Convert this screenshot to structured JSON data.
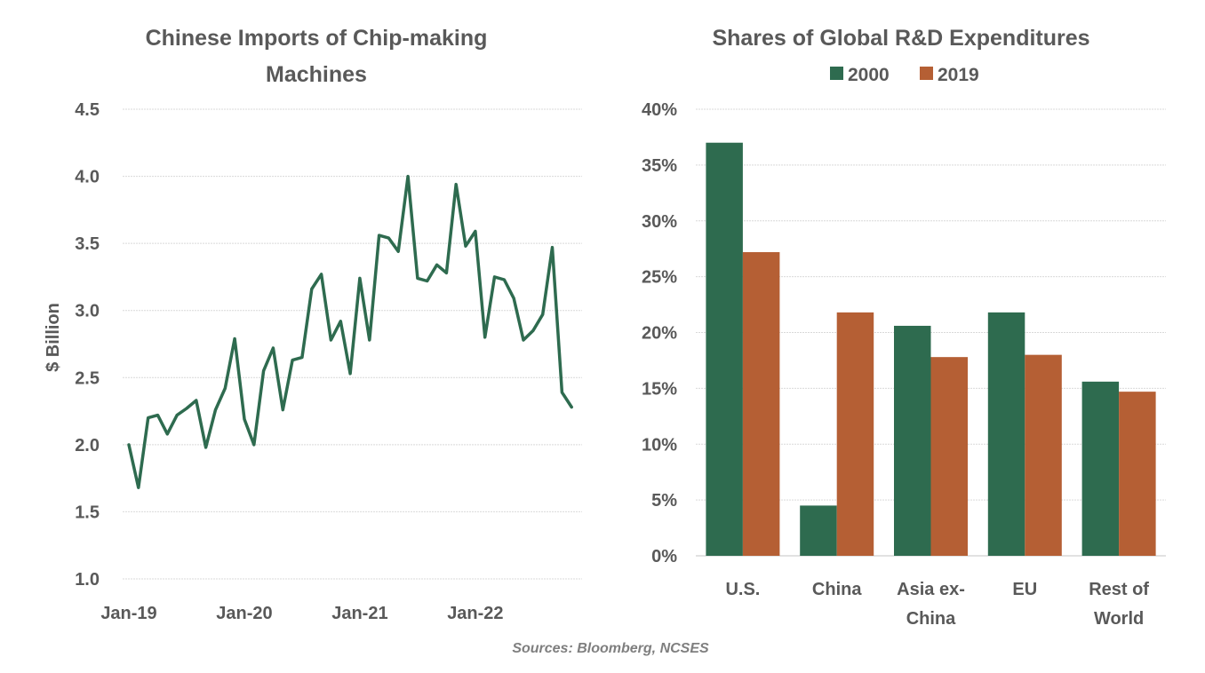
{
  "source_note": "Sources: Bloomberg, NCSES",
  "colors": {
    "line": "#2e6b4f",
    "series_2000": "#2e6b4f",
    "series_2019": "#b55f34",
    "text": "#595959",
    "grid": "#d9d9d9"
  },
  "chart_data": [
    {
      "type": "line",
      "title_lines": [
        "Chinese Imports of Chip-making",
        "Machines"
      ],
      "xlabel": "",
      "ylabel": "$ Billion",
      "ylim": [
        1.0,
        4.5
      ],
      "yticks": [
        1.0,
        1.5,
        2.0,
        2.5,
        3.0,
        3.5,
        4.0,
        4.5
      ],
      "ytick_labels": [
        "1.0",
        "1.5",
        "2.0",
        "2.5",
        "3.0",
        "3.5",
        "4.0",
        "4.5"
      ],
      "xtick_labels": [
        "Jan-19",
        "Jan-20",
        "Jan-21",
        "Jan-22"
      ],
      "xtick_index": [
        0,
        12,
        24,
        36
      ],
      "grid": true,
      "series": [
        {
          "name": "Chinese Imports of Chip-making Machines",
          "x": [
            "Jan-19",
            "Feb-19",
            "Mar-19",
            "Apr-19",
            "May-19",
            "Jun-19",
            "Jul-19",
            "Aug-19",
            "Sep-19",
            "Oct-19",
            "Nov-19",
            "Dec-19",
            "Jan-20",
            "Feb-20",
            "Mar-20",
            "Apr-20",
            "May-20",
            "Jun-20",
            "Jul-20",
            "Aug-20",
            "Sep-20",
            "Oct-20",
            "Nov-20",
            "Dec-20",
            "Jan-21",
            "Feb-21",
            "Mar-21",
            "Apr-21",
            "May-21",
            "Jun-21",
            "Jul-21",
            "Aug-21",
            "Sep-21",
            "Oct-21",
            "Nov-21",
            "Dec-21",
            "Jan-22",
            "Feb-22",
            "Mar-22",
            "Apr-22",
            "May-22",
            "Jun-22",
            "Jul-22",
            "Aug-22",
            "Sep-22",
            "Oct-22",
            "Nov-22"
          ],
          "values": [
            2.0,
            1.68,
            2.2,
            2.22,
            2.08,
            2.22,
            2.27,
            2.33,
            1.98,
            2.26,
            2.42,
            2.79,
            2.19,
            2.0,
            2.55,
            2.72,
            2.26,
            2.63,
            2.65,
            3.16,
            3.27,
            2.78,
            2.92,
            2.53,
            3.24,
            2.78,
            3.56,
            3.54,
            3.44,
            4.0,
            3.24,
            3.22,
            3.34,
            3.28,
            3.94,
            3.48,
            3.59,
            2.8,
            3.25,
            3.23,
            3.09,
            2.78,
            2.85,
            2.97,
            3.47,
            2.39,
            2.28
          ]
        }
      ]
    },
    {
      "type": "bar",
      "title": "Shares of Global R&D Expenditures",
      "categories": [
        "U.S.",
        "China",
        "Asia ex-China",
        "EU",
        "Rest of World"
      ],
      "category_label_lines": [
        [
          "U.S."
        ],
        [
          "China"
        ],
        [
          "Asia ex-",
          "China"
        ],
        [
          "EU"
        ],
        [
          "Rest of",
          "World"
        ]
      ],
      "series": [
        {
          "name": "2000",
          "values": [
            37.0,
            4.5,
            20.6,
            21.8,
            15.6
          ]
        },
        {
          "name": "2019",
          "values": [
            27.2,
            21.8,
            17.8,
            18.0,
            14.7
          ]
        }
      ],
      "legend": [
        "2000",
        "2019"
      ],
      "legend_position": "top",
      "xlabel": "",
      "ylabel": "",
      "ylim": [
        0,
        40
      ],
      "yticks": [
        0,
        5,
        10,
        15,
        20,
        25,
        30,
        35,
        40
      ],
      "ytick_labels": [
        "0%",
        "5%",
        "10%",
        "15%",
        "20%",
        "25%",
        "30%",
        "35%",
        "40%"
      ],
      "grid": true
    }
  ]
}
